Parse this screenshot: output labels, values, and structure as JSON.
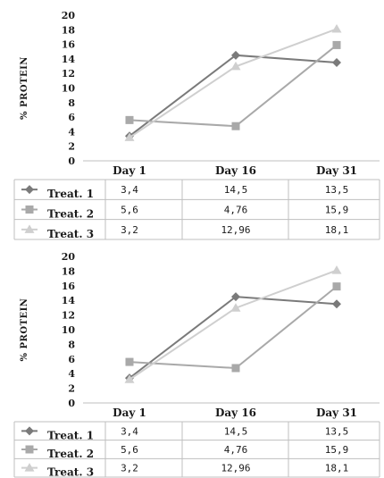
{
  "colors": {
    "treat1": "#7a7a7a",
    "treat2": "#a9a9a9",
    "treat3": "#cfcfcf",
    "gridline": "#bfbfbf",
    "text": "#1a1a1a"
  },
  "chart_data": [
    {
      "type": "line",
      "ylabel": "% PROTEIN",
      "ylim": [
        0,
        20
      ],
      "yticks": [
        "0",
        "2",
        "4",
        "6",
        "8",
        "10",
        "12",
        "14",
        "16",
        "18",
        "20"
      ],
      "categories": [
        "Day 1",
        "Day 16",
        "Day 31"
      ],
      "grid": false,
      "legend": "data table below chart",
      "series": [
        {
          "name": "Treat. 1",
          "marker": "diamond",
          "values": [
            3.4,
            14.5,
            13.5
          ],
          "labels": [
            "3,4",
            "14,5",
            "13,5"
          ]
        },
        {
          "name": "Treat. 2",
          "marker": "square",
          "values": [
            5.6,
            4.76,
            15.9
          ],
          "labels": [
            "5,6",
            "4,76",
            "15,9"
          ]
        },
        {
          "name": "Treat. 3",
          "marker": "triangle",
          "values": [
            3.2,
            12.96,
            18.1
          ],
          "labels": [
            "3,2",
            "12,96",
            "18,1"
          ]
        }
      ]
    },
    {
      "type": "line",
      "ylabel": "% PROTEIN",
      "ylim": [
        0,
        20
      ],
      "yticks": [
        "0",
        "2",
        "4",
        "6",
        "8",
        "10",
        "12",
        "14",
        "16",
        "18",
        "20"
      ],
      "categories": [
        "Day 1",
        "Day 16",
        "Day 31"
      ],
      "grid": false,
      "legend": "data table below chart",
      "series": [
        {
          "name": "Treat. 1",
          "marker": "diamond",
          "values": [
            3.4,
            14.5,
            13.5
          ],
          "labels": [
            "3,4",
            "14,5",
            "13,5"
          ]
        },
        {
          "name": "Treat. 2",
          "marker": "square",
          "values": [
            5.6,
            4.76,
            15.9
          ],
          "labels": [
            "5,6",
            "4,76",
            "15,9"
          ]
        },
        {
          "name": "Treat. 3",
          "marker": "triangle",
          "values": [
            3.2,
            12.96,
            18.1
          ],
          "labels": [
            "3,2",
            "12,96",
            "18,1"
          ]
        }
      ]
    }
  ]
}
